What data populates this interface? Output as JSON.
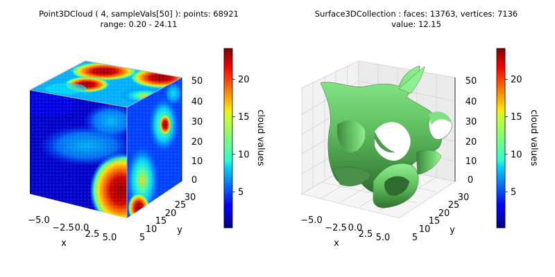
{
  "chart_data": [
    {
      "type": "scatter",
      "subtype": "3d-point-cloud-cube",
      "title_line1": "Point3DCloud ( 4, sampleVals[50] ):  points: 68921",
      "title_line2": "range: 0.20 - 24.11",
      "x_ticks": [
        "−5.0",
        "−2.5",
        "0.0",
        "2.5",
        "5.0"
      ],
      "y_ticks": [
        "5",
        "10",
        "15",
        "20",
        "25",
        "30"
      ],
      "z_ticks": [
        "0",
        "10",
        "20",
        "30",
        "40",
        "50"
      ],
      "xlabel": "x",
      "ylabel": "y",
      "xlim": [
        -6,
        6
      ],
      "ylim": [
        5,
        30
      ],
      "zlim": [
        0,
        50
      ],
      "colorbar": {
        "label": "cloud values",
        "colormap": "jet",
        "range": [
          0.2,
          24.11
        ],
        "ticks": [
          "5",
          "10",
          "15",
          "20"
        ],
        "tick_values": [
          5,
          10,
          15,
          20
        ]
      }
    },
    {
      "type": "surface",
      "subtype": "3d-isosurface",
      "title_line1": "Surface3DCollection :  faces: 13763,  vertices: 7136",
      "title_line2": "value: 12.15",
      "surface_color": "#7ee07e",
      "x_ticks": [
        "−5.0",
        "−2.5",
        "0.0",
        "2.5",
        "5.0"
      ],
      "y_ticks": [
        "5",
        "10",
        "15",
        "20",
        "25",
        "30"
      ],
      "z_ticks": [
        "0",
        "10",
        "20",
        "30",
        "40",
        "50"
      ],
      "xlabel": "x",
      "ylabel": "y",
      "xlim": [
        -6,
        6
      ],
      "ylim": [
        5,
        30
      ],
      "zlim": [
        0,
        50
      ],
      "colorbar": {
        "label": "cloud values",
        "colormap": "jet",
        "range": [
          0.2,
          24.11
        ],
        "ticks": [
          "5",
          "10",
          "15",
          "20"
        ],
        "tick_values": [
          5,
          10,
          15,
          20
        ]
      }
    }
  ]
}
